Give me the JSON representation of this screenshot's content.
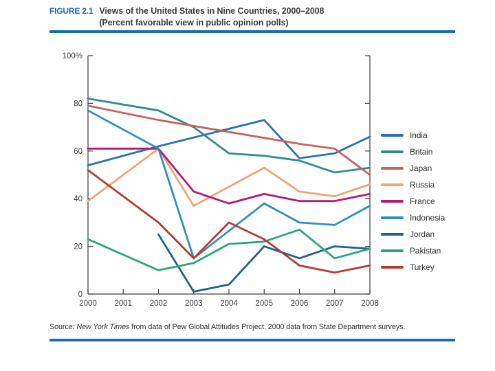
{
  "header": {
    "figure_label": "FIGURE 2.1",
    "title_line1": "Views of the United States in Nine Countries, 2000–2008",
    "title_line2": "(Percent favorable view in public opinion polls)",
    "accent_color": "#1b6cb1",
    "text_color": "#3b3b3b"
  },
  "source": {
    "prefix": "Source: ",
    "publication": "New York Times",
    "rest": " from data of Pew Global Attitudes Project. 2000 data from State Department surveys."
  },
  "chart_data": {
    "type": "line",
    "title": "Views of the United States in Nine Countries, 2000–2008",
    "subtitle": "Percent favorable view in public opinion polls",
    "x": [
      2000,
      2001,
      2002,
      2003,
      2004,
      2005,
      2006,
      2007,
      2008
    ],
    "ylim": [
      0,
      100
    ],
    "yticks": [
      0,
      20,
      40,
      60,
      80,
      100
    ],
    "ytick_labels": [
      "0",
      "20",
      "40",
      "60",
      "80",
      "100%"
    ],
    "grid": false,
    "legend_position": "right",
    "axis_color": "#3a3a3a",
    "series": [
      {
        "name": "India",
        "color": "#2d6fb1",
        "values": [
          54,
          null,
          62,
          null,
          null,
          73,
          57,
          59,
          66
        ]
      },
      {
        "name": "Britain",
        "color": "#2f8c8a",
        "values": [
          82,
          null,
          77,
          70,
          59,
          58,
          56,
          51,
          53
        ]
      },
      {
        "name": "Japan",
        "color": "#c4625e",
        "values": [
          79,
          null,
          73,
          null,
          null,
          null,
          63,
          61,
          50
        ]
      },
      {
        "name": "Russia",
        "color": "#efa475",
        "values": [
          39,
          null,
          61,
          37,
          null,
          53,
          43,
          41,
          46
        ]
      },
      {
        "name": "France",
        "color": "#b01b71",
        "values": [
          61,
          null,
          61,
          43,
          38,
          42,
          39,
          39,
          42
        ]
      },
      {
        "name": "Indonesia",
        "color": "#2d8ebf",
        "values": [
          77,
          null,
          61,
          15,
          null,
          38,
          30,
          29,
          37
        ]
      },
      {
        "name": "Jordan",
        "color": "#1c628f",
        "values": [
          null,
          null,
          25,
          1,
          4,
          20,
          15,
          20,
          19
        ]
      },
      {
        "name": "Pakistan",
        "color": "#2ba47d",
        "values": [
          23,
          null,
          10,
          13,
          21,
          22,
          27,
          15,
          19
        ]
      },
      {
        "name": "Turkey",
        "color": "#b23a34",
        "values": [
          52,
          null,
          30,
          15,
          30,
          23,
          12,
          9,
          12
        ]
      }
    ]
  }
}
